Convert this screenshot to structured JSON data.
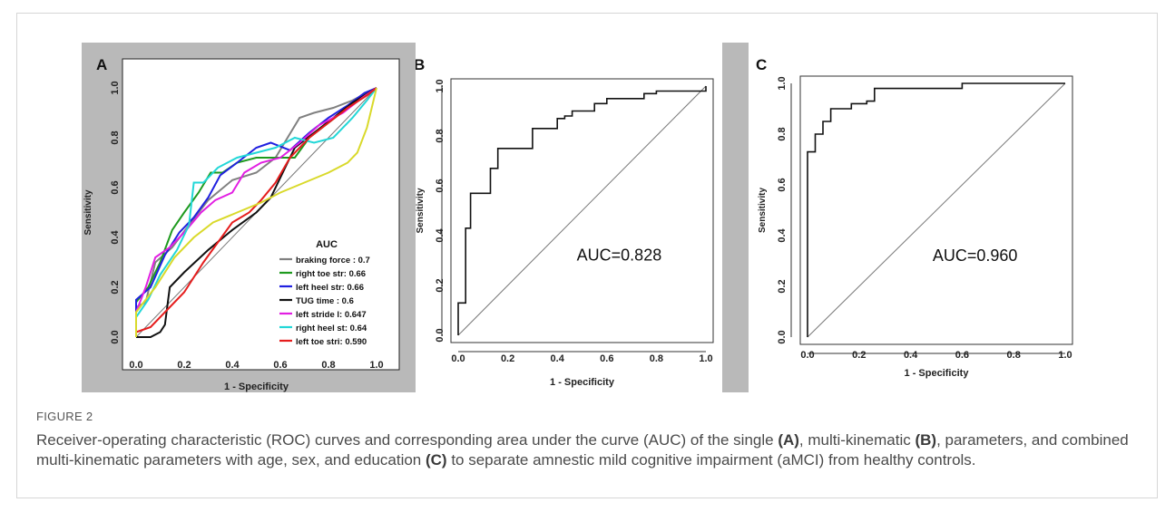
{
  "figure": {
    "label": "FIGURE 2",
    "caption_parts": [
      "Receiver-operating characteristic (ROC) curves and corresponding area under the curve (AUC) of the single ",
      "(A)",
      ", multi-kinematic ",
      "(B)",
      ", parameters, and combined multi-kinematic parameters with age, sex, and education ",
      "(C)",
      " to separate amnestic mild cognitive impairment (aMCI) from healthy controls."
    ]
  },
  "chart_data": [
    {
      "panel": "A",
      "type": "line",
      "xlabel": "1 - Specificity",
      "ylabel": "Sensitivity",
      "xlim": [
        0,
        1
      ],
      "ylim": [
        0,
        1
      ],
      "xticks": [
        "0.0",
        "0.2",
        "0.4",
        "0.6",
        "0.8",
        "1.0"
      ],
      "yticks": [
        "0.0",
        "0.2",
        "0.4",
        "0.6",
        "0.8",
        "1.0"
      ],
      "legend_title": "AUC",
      "legend_position": "bottom-right",
      "series": [
        {
          "name": "braking force : 0.7",
          "color": "#808080",
          "points": [
            [
              0,
              0
            ],
            [
              0,
              0.12
            ],
            [
              0.04,
              0.14
            ],
            [
              0.08,
              0.3
            ],
            [
              0.15,
              0.36
            ],
            [
              0.22,
              0.45
            ],
            [
              0.3,
              0.55
            ],
            [
              0.4,
              0.63
            ],
            [
              0.5,
              0.66
            ],
            [
              0.58,
              0.72
            ],
            [
              0.63,
              0.8
            ],
            [
              0.68,
              0.88
            ],
            [
              0.74,
              0.9
            ],
            [
              0.82,
              0.92
            ],
            [
              0.9,
              0.95
            ],
            [
              1,
              1
            ]
          ]
        },
        {
          "name": "right toe str: 0.66",
          "color": "#1e9a1e",
          "points": [
            [
              0,
              0
            ],
            [
              0,
              0.14
            ],
            [
              0.05,
              0.2
            ],
            [
              0.1,
              0.3
            ],
            [
              0.15,
              0.43
            ],
            [
              0.2,
              0.5
            ],
            [
              0.26,
              0.58
            ],
            [
              0.31,
              0.66
            ],
            [
              0.36,
              0.66
            ],
            [
              0.42,
              0.7
            ],
            [
              0.5,
              0.72
            ],
            [
              0.58,
              0.72
            ],
            [
              0.66,
              0.72
            ],
            [
              0.72,
              0.8
            ],
            [
              0.8,
              0.86
            ],
            [
              0.88,
              0.92
            ],
            [
              0.94,
              0.97
            ],
            [
              1,
              1
            ]
          ]
        },
        {
          "name": "left heel str: 0.66",
          "color": "#2020e0",
          "points": [
            [
              0,
              0
            ],
            [
              0,
              0.15
            ],
            [
              0.06,
              0.2
            ],
            [
              0.12,
              0.33
            ],
            [
              0.18,
              0.42
            ],
            [
              0.24,
              0.48
            ],
            [
              0.3,
              0.56
            ],
            [
              0.35,
              0.65
            ],
            [
              0.42,
              0.7
            ],
            [
              0.5,
              0.76
            ],
            [
              0.56,
              0.78
            ],
            [
              0.64,
              0.75
            ],
            [
              0.72,
              0.82
            ],
            [
              0.8,
              0.88
            ],
            [
              0.88,
              0.93
            ],
            [
              0.95,
              0.98
            ],
            [
              1,
              1
            ]
          ]
        },
        {
          "name": "TUG time     : 0.6",
          "color": "#111111",
          "points": [
            [
              0,
              0
            ],
            [
              0,
              0.0
            ],
            [
              0.06,
              0.0
            ],
            [
              0.1,
              0.02
            ],
            [
              0.12,
              0.05
            ],
            [
              0.14,
              0.2
            ],
            [
              0.2,
              0.26
            ],
            [
              0.3,
              0.35
            ],
            [
              0.4,
              0.43
            ],
            [
              0.5,
              0.5
            ],
            [
              0.56,
              0.56
            ],
            [
              0.6,
              0.64
            ],
            [
              0.66,
              0.76
            ],
            [
              0.74,
              0.82
            ],
            [
              0.82,
              0.88
            ],
            [
              0.9,
              0.94
            ],
            [
              1,
              1
            ]
          ]
        },
        {
          "name": "left stride l: 0.647",
          "color": "#e21ee2",
          "points": [
            [
              0,
              0
            ],
            [
              0,
              0.1
            ],
            [
              0.04,
              0.2
            ],
            [
              0.08,
              0.32
            ],
            [
              0.14,
              0.36
            ],
            [
              0.2,
              0.42
            ],
            [
              0.27,
              0.5
            ],
            [
              0.33,
              0.55
            ],
            [
              0.4,
              0.58
            ],
            [
              0.45,
              0.66
            ],
            [
              0.52,
              0.7
            ],
            [
              0.6,
              0.72
            ],
            [
              0.68,
              0.78
            ],
            [
              0.76,
              0.85
            ],
            [
              0.86,
              0.9
            ],
            [
              0.94,
              0.96
            ],
            [
              1,
              1
            ]
          ]
        },
        {
          "name": "right heel st: 0.64",
          "color": "#22d7d7",
          "points": [
            [
              0,
              0
            ],
            [
              0,
              0.08
            ],
            [
              0.05,
              0.15
            ],
            [
              0.1,
              0.25
            ],
            [
              0.17,
              0.35
            ],
            [
              0.22,
              0.45
            ],
            [
              0.24,
              0.62
            ],
            [
              0.28,
              0.62
            ],
            [
              0.34,
              0.68
            ],
            [
              0.42,
              0.72
            ],
            [
              0.5,
              0.74
            ],
            [
              0.58,
              0.76
            ],
            [
              0.66,
              0.8
            ],
            [
              0.74,
              0.78
            ],
            [
              0.82,
              0.8
            ],
            [
              0.9,
              0.88
            ],
            [
              0.96,
              0.95
            ],
            [
              1,
              1
            ]
          ]
        },
        {
          "name": "left toe stri: 0.590",
          "color": "#e51d1d",
          "points": [
            [
              0,
              0
            ],
            [
              0,
              0.02
            ],
            [
              0.06,
              0.04
            ],
            [
              0.12,
              0.1
            ],
            [
              0.2,
              0.18
            ],
            [
              0.28,
              0.3
            ],
            [
              0.34,
              0.38
            ],
            [
              0.4,
              0.46
            ],
            [
              0.47,
              0.5
            ],
            [
              0.52,
              0.55
            ],
            [
              0.58,
              0.62
            ],
            [
              0.64,
              0.72
            ],
            [
              0.72,
              0.8
            ],
            [
              0.8,
              0.86
            ],
            [
              0.88,
              0.92
            ],
            [
              0.96,
              0.97
            ],
            [
              1,
              1
            ]
          ]
        },
        {
          "name": "",
          "color": "#d9d92a",
          "points": [
            [
              0,
              0
            ],
            [
              0,
              0.1
            ],
            [
              0.08,
              0.2
            ],
            [
              0.16,
              0.32
            ],
            [
              0.24,
              0.4
            ],
            [
              0.32,
              0.46
            ],
            [
              0.42,
              0.5
            ],
            [
              0.52,
              0.54
            ],
            [
              0.6,
              0.58
            ],
            [
              0.7,
              0.62
            ],
            [
              0.8,
              0.66
            ],
            [
              0.88,
              0.7
            ],
            [
              0.92,
              0.74
            ],
            [
              0.96,
              0.84
            ],
            [
              1,
              1
            ]
          ]
        }
      ]
    },
    {
      "panel": "B",
      "type": "line",
      "xlabel": "1 - Specificity",
      "ylabel": "Sensitivity",
      "xlim": [
        0,
        1
      ],
      "ylim": [
        0,
        1
      ],
      "xticks": [
        "0.0",
        "0.2",
        "0.4",
        "0.6",
        "0.8",
        "1.0"
      ],
      "yticks": [
        "0.0",
        "0.2",
        "0.4",
        "0.6",
        "0.8",
        "1.0"
      ],
      "annotation": "AUC=0.828",
      "series": [
        {
          "name": "",
          "color": "#111111",
          "points": [
            [
              0,
              0
            ],
            [
              0,
              0.13
            ],
            [
              0.03,
              0.13
            ],
            [
              0.03,
              0.43
            ],
            [
              0.05,
              0.43
            ],
            [
              0.05,
              0.57
            ],
            [
              0.13,
              0.57
            ],
            [
              0.13,
              0.67
            ],
            [
              0.16,
              0.67
            ],
            [
              0.16,
              0.75
            ],
            [
              0.3,
              0.75
            ],
            [
              0.3,
              0.83
            ],
            [
              0.4,
              0.83
            ],
            [
              0.4,
              0.87
            ],
            [
              0.43,
              0.87
            ],
            [
              0.43,
              0.88
            ],
            [
              0.46,
              0.88
            ],
            [
              0.46,
              0.9
            ],
            [
              0.55,
              0.9
            ],
            [
              0.55,
              0.93
            ],
            [
              0.6,
              0.93
            ],
            [
              0.6,
              0.95
            ],
            [
              0.75,
              0.95
            ],
            [
              0.75,
              0.97
            ],
            [
              0.8,
              0.97
            ],
            [
              0.8,
              0.98
            ],
            [
              1,
              0.98
            ],
            [
              1,
              1
            ]
          ]
        }
      ]
    },
    {
      "panel": "C",
      "type": "line",
      "xlabel": "1 - Specificity",
      "ylabel": "Sensitivity",
      "xlim": [
        0,
        1
      ],
      "ylim": [
        0,
        1
      ],
      "xticks": [
        "0.0",
        "0.2",
        "0.4",
        "0.6",
        "0.8",
        "1.0"
      ],
      "yticks": [
        "0.0",
        "0.2",
        "0.4",
        "0.6",
        "0.8",
        "1.0"
      ],
      "annotation": "AUC=0.960",
      "series": [
        {
          "name": "",
          "color": "#111111",
          "points": [
            [
              0,
              0
            ],
            [
              0,
              0.73
            ],
            [
              0.03,
              0.73
            ],
            [
              0.03,
              0.8
            ],
            [
              0.06,
              0.8
            ],
            [
              0.06,
              0.85
            ],
            [
              0.09,
              0.85
            ],
            [
              0.09,
              0.9
            ],
            [
              0.17,
              0.9
            ],
            [
              0.17,
              0.92
            ],
            [
              0.23,
              0.92
            ],
            [
              0.23,
              0.93
            ],
            [
              0.26,
              0.93
            ],
            [
              0.26,
              0.98
            ],
            [
              0.6,
              0.98
            ],
            [
              0.6,
              1
            ],
            [
              1,
              1
            ]
          ]
        }
      ]
    }
  ]
}
